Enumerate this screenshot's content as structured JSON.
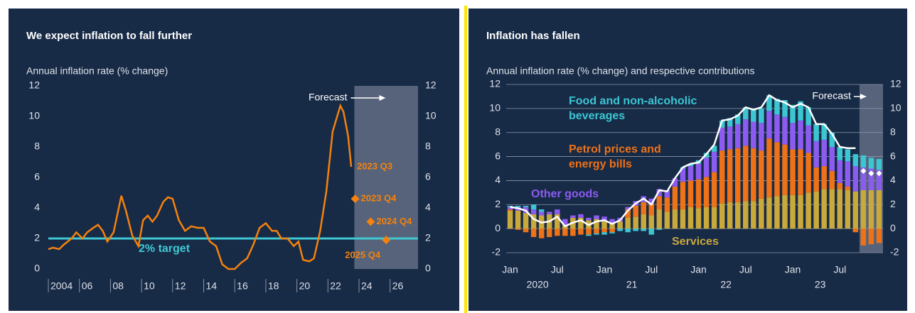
{
  "chart_data": [
    {
      "type": "line",
      "title": "We expect inflation to fall further",
      "subtitle": "Annual inflation rate (% change)",
      "x": [
        2004.0,
        2004.3,
        2004.7,
        2005.0,
        2005.5,
        2005.8,
        2006.2,
        2006.5,
        2006.9,
        2007.2,
        2007.5,
        2007.8,
        2008.2,
        2008.7,
        2009.0,
        2009.4,
        2009.8,
        2010.1,
        2010.4,
        2010.7,
        2011.0,
        2011.4,
        2011.7,
        2012.0,
        2012.4,
        2012.8,
        2013.2,
        2013.6,
        2014.0,
        2014.4,
        2014.8,
        2015.2,
        2015.6,
        2016.0,
        2016.4,
        2016.8,
        2017.2,
        2017.6,
        2018.0,
        2018.4,
        2018.7,
        2019.0,
        2019.4,
        2019.8,
        2020.1,
        2020.4,
        2020.8,
        2021.1,
        2021.5,
        2021.9,
        2022.3,
        2022.8,
        2023.0,
        2023.3,
        2023.5
      ],
      "values": [
        1.3,
        1.4,
        1.3,
        1.6,
        2.0,
        2.4,
        2.0,
        2.4,
        2.7,
        2.9,
        2.5,
        1.8,
        2.4,
        4.8,
        3.8,
        2.2,
        1.5,
        3.2,
        3.5,
        3.1,
        3.5,
        4.4,
        4.7,
        4.6,
        3.2,
        2.5,
        2.8,
        2.7,
        2.7,
        1.8,
        1.5,
        0.3,
        0.0,
        0.0,
        0.4,
        0.7,
        1.6,
        2.7,
        3.0,
        2.5,
        2.5,
        2.0,
        2.0,
        1.5,
        1.8,
        0.6,
        0.5,
        0.7,
        2.5,
        5.1,
        9.0,
        10.7,
        10.3,
        8.7,
        6.7
      ],
      "color": "#f5820d",
      "end_label": "2023 Q3",
      "forecast_points": {
        "x": [
          2023.75,
          2024.75,
          2025.75
        ],
        "values": [
          4.6,
          3.1,
          1.9
        ],
        "labels": [
          "2023 Q4",
          "2024 Q4",
          "2025 Q4"
        ],
        "color": "#f5820d"
      },
      "target": {
        "value": 2,
        "label": "2% target",
        "color": "#3ec9d4"
      },
      "forecast": {
        "label": "Forecast",
        "start": 2023.7
      },
      "xlim": [
        2004,
        2027.8
      ],
      "xticks": [
        2004,
        {
          "value": 2006,
          "label": "06"
        },
        {
          "value": 2008,
          "label": "08"
        },
        {
          "value": 2010,
          "label": "10"
        },
        {
          "value": 2012,
          "label": "12"
        },
        {
          "value": 2014,
          "label": "14"
        },
        {
          "value": 2016,
          "label": "16"
        },
        {
          "value": 2018,
          "label": "18"
        },
        {
          "value": 2020,
          "label": "20"
        },
        {
          "value": 2022,
          "label": "22"
        },
        {
          "value": 2024,
          "label": "24"
        },
        {
          "value": 2026,
          "label": "26"
        }
      ],
      "ylim": [
        0,
        12
      ],
      "yticks": [
        0,
        2,
        4,
        6,
        8,
        10,
        12
      ],
      "y2lim": [
        0,
        12
      ],
      "y2ticks": [
        0,
        2,
        4,
        6,
        8,
        10,
        12
      ]
    },
    {
      "type": "bar",
      "stacked": true,
      "title": "Inflation has fallen",
      "subtitle": "Annual inflation rate (% change) and respective contributions",
      "categories": [
        "Jan",
        null,
        null,
        null,
        null,
        null,
        "Jul",
        null,
        null,
        null,
        null,
        null,
        "Jan",
        null,
        null,
        null,
        null,
        null,
        "Jul",
        null,
        null,
        null,
        null,
        null,
        "Jan",
        null,
        null,
        null,
        null,
        null,
        "Jul",
        null,
        null,
        null,
        null,
        null,
        "Jan",
        null,
        null,
        null,
        null,
        null,
        "Jul",
        null,
        null,
        null,
        null,
        null
      ],
      "groups": [
        "2020",
        "21",
        "22",
        "23"
      ],
      "series": [
        {
          "name": "Services",
          "color": "#c9a93c",
          "values": [
            1.5,
            1.5,
            1.3,
            1.2,
            1.1,
            1.2,
            1.2,
            0.3,
            0.9,
            0.9,
            0.7,
            0.8,
            0.6,
            0.5,
            0.6,
            0.9,
            1.0,
            1.2,
            1.1,
            1.6,
            1.4,
            1.6,
            1.6,
            1.8,
            1.7,
            1.8,
            1.8,
            2.1,
            2.2,
            2.2,
            2.3,
            2.3,
            2.5,
            2.6,
            2.7,
            2.8,
            2.8,
            2.8,
            3.0,
            3.1,
            3.3,
            3.3,
            3.3,
            3.2,
            3.1,
            3.2,
            3.2,
            3.2
          ]
        },
        {
          "name": "Petrol prices and energy bills",
          "color": "#ee7218",
          "values": [
            0.1,
            -0.1,
            -0.3,
            -0.7,
            -0.8,
            -0.7,
            -0.6,
            -0.6,
            -0.6,
            -0.5,
            -0.5,
            -0.4,
            -0.3,
            -0.3,
            0.0,
            0.7,
            0.9,
            1.0,
            1.0,
            1.1,
            1.2,
            1.9,
            2.3,
            2.2,
            2.4,
            2.5,
            2.9,
            4.4,
            4.4,
            4.5,
            4.6,
            4.4,
            4.0,
            4.9,
            4.5,
            4.2,
            3.8,
            3.8,
            3.3,
            2.0,
            1.9,
            1.5,
            0.5,
            0.3,
            -0.3,
            -1.4,
            -1.3,
            -1.2
          ]
        },
        {
          "name": "Other goods",
          "color": "#8c5cf0",
          "values": [
            0.2,
            0.3,
            0.5,
            0.4,
            0.3,
            0.2,
            0.4,
            0.5,
            0.2,
            0.3,
            0.2,
            0.3,
            0.4,
            0.3,
            0.3,
            0.2,
            0.4,
            0.5,
            0.4,
            0.6,
            0.6,
            0.7,
            1.1,
            1.2,
            1.3,
            1.6,
            1.7,
            1.9,
            1.9,
            2.0,
            2.2,
            2.2,
            2.3,
            2.3,
            2.3,
            2.3,
            2.2,
            2.4,
            2.3,
            2.2,
            2.2,
            2.0,
            1.9,
            2.1,
            2.1,
            1.9,
            1.8,
            1.7
          ]
        },
        {
          "name": "Food and non-alcoholic beverages",
          "color": "#3cc6d2",
          "values": [
            0.1,
            0.1,
            0.1,
            0.4,
            0.2,
            0.0,
            0.0,
            0.0,
            0.0,
            0.0,
            -0.1,
            -0.1,
            -0.2,
            -0.1,
            -0.2,
            -0.3,
            -0.2,
            -0.2,
            -0.5,
            -0.1,
            0.0,
            0.0,
            0.1,
            0.2,
            0.3,
            0.4,
            0.5,
            0.6,
            0.7,
            0.8,
            1.0,
            1.1,
            1.2,
            1.3,
            1.3,
            1.4,
            1.5,
            1.6,
            1.5,
            1.4,
            1.3,
            1.2,
            1.1,
            1.0,
            1.0,
            1.0,
            0.9,
            0.9
          ]
        }
      ],
      "total": {
        "color": "#ffffff",
        "values": [
          1.8,
          1.7,
          1.5,
          0.8,
          0.5,
          0.6,
          1.0,
          0.2,
          0.5,
          0.7,
          0.3,
          0.6,
          0.7,
          0.4,
          0.7,
          1.5,
          2.1,
          2.5,
          2.0,
          3.2,
          3.1,
          4.2,
          5.1,
          5.4,
          5.5,
          6.2,
          7.0,
          9.0,
          9.1,
          9.4,
          10.1,
          9.9,
          10.1,
          11.1,
          10.7,
          10.5,
          10.1,
          10.4,
          10.1,
          8.7,
          8.7,
          7.9,
          6.8,
          6.7,
          6.7,
          null,
          null,
          null
        ]
      },
      "forecast_points": {
        "color": "#ffffff",
        "values": [
          null,
          null,
          null,
          null,
          null,
          null,
          null,
          null,
          null,
          null,
          null,
          null,
          null,
          null,
          null,
          null,
          null,
          null,
          null,
          null,
          null,
          null,
          null,
          null,
          null,
          null,
          null,
          null,
          null,
          null,
          null,
          null,
          null,
          null,
          null,
          null,
          null,
          null,
          null,
          null,
          null,
          null,
          null,
          null,
          null,
          4.8,
          4.6,
          4.6
        ]
      },
      "forecast": {
        "label": "Forecast",
        "start": 44.5
      },
      "grid": true,
      "ylim": [
        -2,
        12
      ],
      "yticks": [
        -2,
        0,
        2,
        4,
        6,
        8,
        10,
        12
      ],
      "y2lim": [
        -2,
        12
      ],
      "y2ticks": [
        -2,
        0,
        2,
        4,
        6,
        8,
        10,
        12
      ]
    }
  ]
}
